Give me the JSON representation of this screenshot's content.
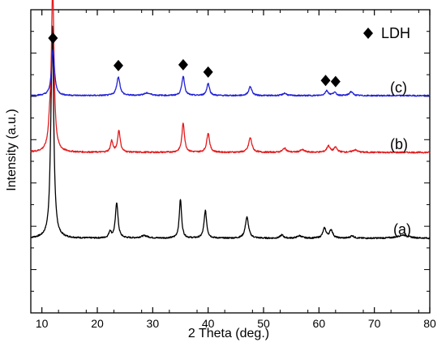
{
  "chart_data": {
    "type": "line",
    "title": "",
    "xlabel": "2 Theta (deg.)",
    "ylabel": "Intensity (a.u.)",
    "xlim": [
      8,
      80
    ],
    "xticks": [
      10,
      20,
      30,
      40,
      50,
      60,
      70,
      80
    ],
    "y_tick_labels_shown": false,
    "grid": false,
    "legend": {
      "placement": "top-right",
      "marker": "diamond",
      "label": "LDH"
    },
    "series": [
      {
        "name": "(a)",
        "color": "#000000",
        "baseline": 0,
        "noise": 0.9,
        "peaks": [
          {
            "x": 11.6,
            "h": 27,
            "w": 0.25
          },
          {
            "x": 11.9,
            "h": 250,
            "w": 0.28
          },
          {
            "x": 22.3,
            "h": 8,
            "w": 0.25
          },
          {
            "x": 23.5,
            "h": 44,
            "w": 0.28
          },
          {
            "x": 28.5,
            "h": 3,
            "w": 0.8
          },
          {
            "x": 35.0,
            "h": 48,
            "w": 0.25
          },
          {
            "x": 39.5,
            "h": 34,
            "w": 0.28
          },
          {
            "x": 47.0,
            "h": 26,
            "w": 0.35
          },
          {
            "x": 53.3,
            "h": 4,
            "w": 0.35
          },
          {
            "x": 56.5,
            "h": 3,
            "w": 0.5
          },
          {
            "x": 61.0,
            "h": 12,
            "w": 0.35
          },
          {
            "x": 62.2,
            "h": 10,
            "w": 0.35
          },
          {
            "x": 66.0,
            "h": 3,
            "w": 0.4
          },
          {
            "x": 75.2,
            "h": 4,
            "w": 1.2
          }
        ]
      },
      {
        "name": "(b)",
        "color": "#e41a1c",
        "baseline": 106,
        "noise": 0.9,
        "peaks": [
          {
            "x": 11.4,
            "h": 20,
            "w": 0.3
          },
          {
            "x": 11.95,
            "h": 200,
            "w": 0.28
          },
          {
            "x": 22.6,
            "h": 14,
            "w": 0.25
          },
          {
            "x": 23.9,
            "h": 27,
            "w": 0.28
          },
          {
            "x": 35.5,
            "h": 36,
            "w": 0.28
          },
          {
            "x": 40.0,
            "h": 24,
            "w": 0.3
          },
          {
            "x": 47.6,
            "h": 18,
            "w": 0.35
          },
          {
            "x": 53.8,
            "h": 5,
            "w": 0.4
          },
          {
            "x": 57.0,
            "h": 3,
            "w": 0.5
          },
          {
            "x": 61.7,
            "h": 8,
            "w": 0.35
          },
          {
            "x": 63.0,
            "h": 6,
            "w": 0.35
          },
          {
            "x": 66.5,
            "h": 3,
            "w": 0.5
          }
        ]
      },
      {
        "name": "(c)",
        "color": "#1f1fd6",
        "baseline": 176,
        "noise": 0.8,
        "peaks": [
          {
            "x": 12.0,
            "h": 57,
            "w": 0.32
          },
          {
            "x": 23.8,
            "h": 23,
            "w": 0.35
          },
          {
            "x": 29.0,
            "h": 3,
            "w": 0.8
          },
          {
            "x": 35.5,
            "h": 24,
            "w": 0.3
          },
          {
            "x": 40.0,
            "h": 15,
            "w": 0.3
          },
          {
            "x": 47.6,
            "h": 11,
            "w": 0.35
          },
          {
            "x": 53.8,
            "h": 3,
            "w": 0.4
          },
          {
            "x": 61.4,
            "h": 6,
            "w": 0.35
          },
          {
            "x": 62.8,
            "h": 4,
            "w": 0.35
          },
          {
            "x": 65.8,
            "h": 5,
            "w": 0.35
          }
        ]
      }
    ],
    "ldh_markers": [
      12.0,
      23.8,
      35.5,
      40.0,
      61.2,
      63.0
    ]
  }
}
